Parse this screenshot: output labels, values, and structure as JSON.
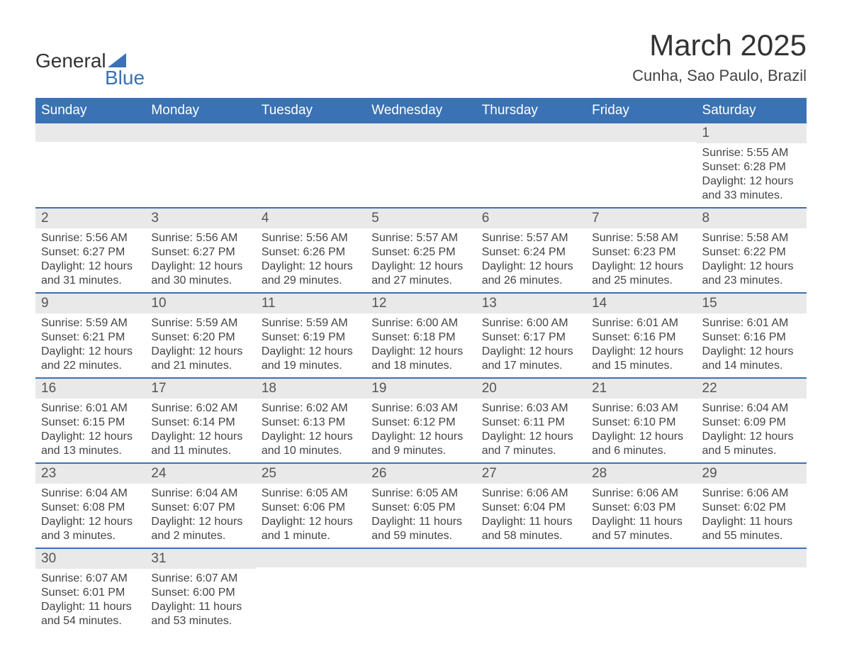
{
  "logo": {
    "text_top": "General",
    "text_bottom": "Blue",
    "text_color_top": "#333333",
    "text_color_bottom": "#3a72b5",
    "triangle_color": "#3a72b5"
  },
  "header": {
    "title": "March 2025",
    "subtitle": "Cunha, Sao Paulo, Brazil",
    "title_fontsize": 42,
    "subtitle_fontsize": 22,
    "title_color": "#333333"
  },
  "calendar": {
    "header_bg": "#3a72b5",
    "header_text_color": "#ffffff",
    "day_bar_bg": "#e9e9e9",
    "week_divider_color": "#3a72b5",
    "body_text_color": "#444444",
    "header_fontsize": 19,
    "daynum_fontsize": 19,
    "detail_fontsize": 16,
    "day_headers": [
      "Sunday",
      "Monday",
      "Tuesday",
      "Wednesday",
      "Thursday",
      "Friday",
      "Saturday"
    ],
    "weeks": [
      [
        {
          "day": "",
          "sunrise": "",
          "sunset": "",
          "daylight": ""
        },
        {
          "day": "",
          "sunrise": "",
          "sunset": "",
          "daylight": ""
        },
        {
          "day": "",
          "sunrise": "",
          "sunset": "",
          "daylight": ""
        },
        {
          "day": "",
          "sunrise": "",
          "sunset": "",
          "daylight": ""
        },
        {
          "day": "",
          "sunrise": "",
          "sunset": "",
          "daylight": ""
        },
        {
          "day": "",
          "sunrise": "",
          "sunset": "",
          "daylight": ""
        },
        {
          "day": "1",
          "sunrise": "Sunrise: 5:55 AM",
          "sunset": "Sunset: 6:28 PM",
          "daylight": "Daylight: 12 hours and 33 minutes."
        }
      ],
      [
        {
          "day": "2",
          "sunrise": "Sunrise: 5:56 AM",
          "sunset": "Sunset: 6:27 PM",
          "daylight": "Daylight: 12 hours and 31 minutes."
        },
        {
          "day": "3",
          "sunrise": "Sunrise: 5:56 AM",
          "sunset": "Sunset: 6:27 PM",
          "daylight": "Daylight: 12 hours and 30 minutes."
        },
        {
          "day": "4",
          "sunrise": "Sunrise: 5:56 AM",
          "sunset": "Sunset: 6:26 PM",
          "daylight": "Daylight: 12 hours and 29 minutes."
        },
        {
          "day": "5",
          "sunrise": "Sunrise: 5:57 AM",
          "sunset": "Sunset: 6:25 PM",
          "daylight": "Daylight: 12 hours and 27 minutes."
        },
        {
          "day": "6",
          "sunrise": "Sunrise: 5:57 AM",
          "sunset": "Sunset: 6:24 PM",
          "daylight": "Daylight: 12 hours and 26 minutes."
        },
        {
          "day": "7",
          "sunrise": "Sunrise: 5:58 AM",
          "sunset": "Sunset: 6:23 PM",
          "daylight": "Daylight: 12 hours and 25 minutes."
        },
        {
          "day": "8",
          "sunrise": "Sunrise: 5:58 AM",
          "sunset": "Sunset: 6:22 PM",
          "daylight": "Daylight: 12 hours and 23 minutes."
        }
      ],
      [
        {
          "day": "9",
          "sunrise": "Sunrise: 5:59 AM",
          "sunset": "Sunset: 6:21 PM",
          "daylight": "Daylight: 12 hours and 22 minutes."
        },
        {
          "day": "10",
          "sunrise": "Sunrise: 5:59 AM",
          "sunset": "Sunset: 6:20 PM",
          "daylight": "Daylight: 12 hours and 21 minutes."
        },
        {
          "day": "11",
          "sunrise": "Sunrise: 5:59 AM",
          "sunset": "Sunset: 6:19 PM",
          "daylight": "Daylight: 12 hours and 19 minutes."
        },
        {
          "day": "12",
          "sunrise": "Sunrise: 6:00 AM",
          "sunset": "Sunset: 6:18 PM",
          "daylight": "Daylight: 12 hours and 18 minutes."
        },
        {
          "day": "13",
          "sunrise": "Sunrise: 6:00 AM",
          "sunset": "Sunset: 6:17 PM",
          "daylight": "Daylight: 12 hours and 17 minutes."
        },
        {
          "day": "14",
          "sunrise": "Sunrise: 6:01 AM",
          "sunset": "Sunset: 6:16 PM",
          "daylight": "Daylight: 12 hours and 15 minutes."
        },
        {
          "day": "15",
          "sunrise": "Sunrise: 6:01 AM",
          "sunset": "Sunset: 6:16 PM",
          "daylight": "Daylight: 12 hours and 14 minutes."
        }
      ],
      [
        {
          "day": "16",
          "sunrise": "Sunrise: 6:01 AM",
          "sunset": "Sunset: 6:15 PM",
          "daylight": "Daylight: 12 hours and 13 minutes."
        },
        {
          "day": "17",
          "sunrise": "Sunrise: 6:02 AM",
          "sunset": "Sunset: 6:14 PM",
          "daylight": "Daylight: 12 hours and 11 minutes."
        },
        {
          "day": "18",
          "sunrise": "Sunrise: 6:02 AM",
          "sunset": "Sunset: 6:13 PM",
          "daylight": "Daylight: 12 hours and 10 minutes."
        },
        {
          "day": "19",
          "sunrise": "Sunrise: 6:03 AM",
          "sunset": "Sunset: 6:12 PM",
          "daylight": "Daylight: 12 hours and 9 minutes."
        },
        {
          "day": "20",
          "sunrise": "Sunrise: 6:03 AM",
          "sunset": "Sunset: 6:11 PM",
          "daylight": "Daylight: 12 hours and 7 minutes."
        },
        {
          "day": "21",
          "sunrise": "Sunrise: 6:03 AM",
          "sunset": "Sunset: 6:10 PM",
          "daylight": "Daylight: 12 hours and 6 minutes."
        },
        {
          "day": "22",
          "sunrise": "Sunrise: 6:04 AM",
          "sunset": "Sunset: 6:09 PM",
          "daylight": "Daylight: 12 hours and 5 minutes."
        }
      ],
      [
        {
          "day": "23",
          "sunrise": "Sunrise: 6:04 AM",
          "sunset": "Sunset: 6:08 PM",
          "daylight": "Daylight: 12 hours and 3 minutes."
        },
        {
          "day": "24",
          "sunrise": "Sunrise: 6:04 AM",
          "sunset": "Sunset: 6:07 PM",
          "daylight": "Daylight: 12 hours and 2 minutes."
        },
        {
          "day": "25",
          "sunrise": "Sunrise: 6:05 AM",
          "sunset": "Sunset: 6:06 PM",
          "daylight": "Daylight: 12 hours and 1 minute."
        },
        {
          "day": "26",
          "sunrise": "Sunrise: 6:05 AM",
          "sunset": "Sunset: 6:05 PM",
          "daylight": "Daylight: 11 hours and 59 minutes."
        },
        {
          "day": "27",
          "sunrise": "Sunrise: 6:06 AM",
          "sunset": "Sunset: 6:04 PM",
          "daylight": "Daylight: 11 hours and 58 minutes."
        },
        {
          "day": "28",
          "sunrise": "Sunrise: 6:06 AM",
          "sunset": "Sunset: 6:03 PM",
          "daylight": "Daylight: 11 hours and 57 minutes."
        },
        {
          "day": "29",
          "sunrise": "Sunrise: 6:06 AM",
          "sunset": "Sunset: 6:02 PM",
          "daylight": "Daylight: 11 hours and 55 minutes."
        }
      ],
      [
        {
          "day": "30",
          "sunrise": "Sunrise: 6:07 AM",
          "sunset": "Sunset: 6:01 PM",
          "daylight": "Daylight: 11 hours and 54 minutes."
        },
        {
          "day": "31",
          "sunrise": "Sunrise: 6:07 AM",
          "sunset": "Sunset: 6:00 PM",
          "daylight": "Daylight: 11 hours and 53 minutes."
        },
        {
          "day": "",
          "sunrise": "",
          "sunset": "",
          "daylight": ""
        },
        {
          "day": "",
          "sunrise": "",
          "sunset": "",
          "daylight": ""
        },
        {
          "day": "",
          "sunrise": "",
          "sunset": "",
          "daylight": ""
        },
        {
          "day": "",
          "sunrise": "",
          "sunset": "",
          "daylight": ""
        },
        {
          "day": "",
          "sunrise": "",
          "sunset": "",
          "daylight": ""
        }
      ]
    ]
  }
}
